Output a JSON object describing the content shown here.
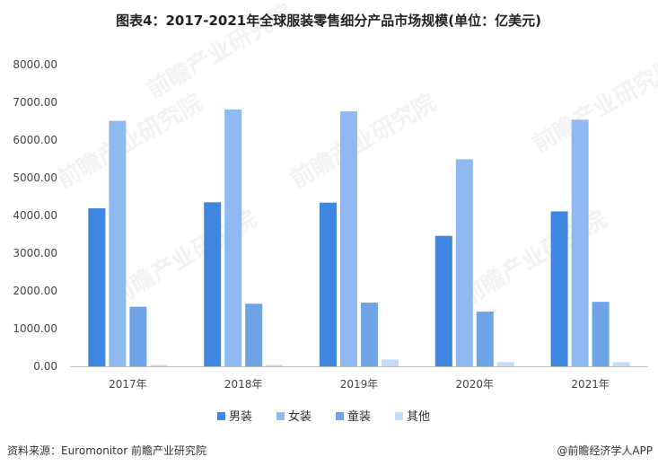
{
  "chart_data": {
    "type": "bar",
    "title": "图表4：2017-2021年全球服装零售细分产品市场规模(单位：亿美元)",
    "categories": [
      "2017年",
      "2018年",
      "2019年",
      "2020年",
      "2021年"
    ],
    "series": [
      {
        "name": "男装",
        "color": "#3f86e0",
        "values": [
          4190,
          4350,
          4340,
          3460,
          4110
        ]
      },
      {
        "name": "女装",
        "color": "#8fb9f0",
        "values": [
          6510,
          6810,
          6760,
          5490,
          6540
        ]
      },
      {
        "name": "童装",
        "color": "#6fa4e6",
        "values": [
          1580,
          1660,
          1690,
          1450,
          1710
        ]
      },
      {
        "name": "其他",
        "color": "#c5dcf6",
        "values": [
          40,
          40,
          180,
          110,
          110
        ]
      }
    ],
    "ylim": [
      0,
      8000
    ],
    "yticks": [
      "0.00",
      "1000.00",
      "2000.00",
      "3000.00",
      "4000.00",
      "5000.00",
      "6000.00",
      "7000.00",
      "8000.00"
    ],
    "xlabel": "",
    "ylabel": "",
    "grid": false,
    "legend_position": "bottom"
  },
  "footer": {
    "source": "资料来源：Euromonitor 前瞻产业研究院",
    "brand": "@前瞻经济学人APP"
  },
  "watermark_text": "前瞻产业研究院"
}
